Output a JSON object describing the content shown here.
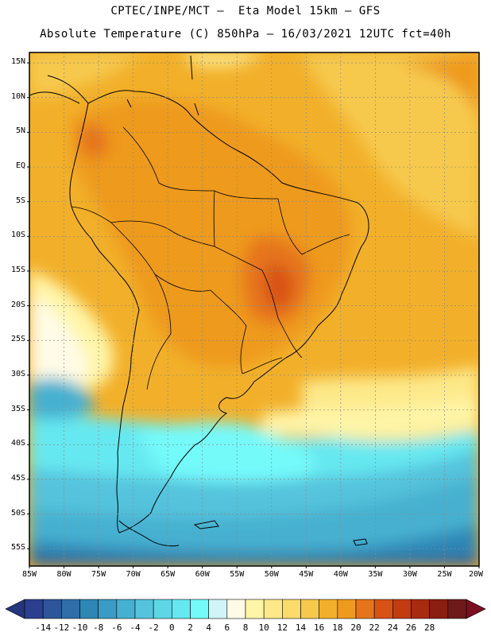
{
  "header": {
    "title_line1": "CPTEC/INPE/MCT –  Eta Model 15km – GFS",
    "title_line2": "Absolute Temperature (C) 850hPa – 16/03/2021 12UTC fct=40h"
  },
  "map": {
    "lat_labels": [
      "15N",
      "10N",
      "5N",
      "EQ",
      "5S",
      "10S",
      "15S",
      "20S",
      "25S",
      "30S",
      "35S",
      "40S",
      "45S",
      "50S",
      "55S"
    ],
    "lat_values": [
      15,
      10,
      5,
      0,
      -5,
      -10,
      -15,
      -20,
      -25,
      -30,
      -35,
      -40,
      -45,
      -50,
      -55
    ],
    "lon_labels": [
      "85W",
      "80W",
      "75W",
      "70W",
      "65W",
      "60W",
      "55W",
      "50W",
      "45W",
      "40W",
      "35W",
      "30W",
      "25W",
      "20W"
    ],
    "lon_values": [
      -85,
      -80,
      -75,
      -70,
      -65,
      -60,
      -55,
      -50,
      -45,
      -40,
      -35,
      -30,
      -25,
      -20
    ],
    "lat_range": [
      -57.5,
      16.5
    ],
    "lon_range": [
      -85,
      -20
    ],
    "gridlines": true
  },
  "colorbar": {
    "labels": [
      "-14",
      "-12",
      "-10",
      "-8",
      "-6",
      "-4",
      "-2",
      "0",
      "2",
      "4",
      "6",
      "8",
      "10",
      "12",
      "14",
      "16",
      "18",
      "20",
      "22",
      "24",
      "26",
      "28"
    ],
    "colors": [
      "#2b3f8e",
      "#2d5599",
      "#2f6ea8",
      "#2e86b5",
      "#3a9cc4",
      "#46b0d0",
      "#55c3dc",
      "#5ed6e6",
      "#66e8f0",
      "#75fafa",
      "#d0f4f8",
      "#fffbe6",
      "#fff5a8",
      "#fde98a",
      "#fadb6c",
      "#f6c94e",
      "#f2b02a",
      "#ee9a1e",
      "#e6741a",
      "#d85215",
      "#c23c12",
      "#a82b10",
      "#8a1e10",
      "#6e1a1a"
    ],
    "under_color": "#24367c",
    "over_color": "#7a0f22"
  }
}
